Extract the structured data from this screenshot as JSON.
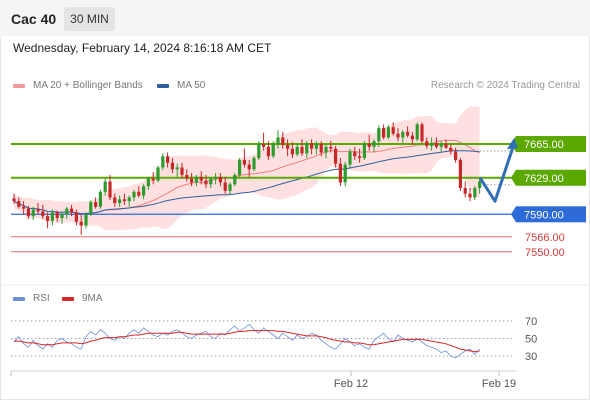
{
  "header": {
    "instrument": "Cac 40",
    "timeframe": "30 MIN",
    "datetime": "Wednesday, February 14, 2024 8:16:18 AM CET"
  },
  "legend": {
    "bollinger_label": "MA 20 + Bollinger Bands",
    "ma50_label": "MA 50",
    "credit": "Research © 2024 Trading Central",
    "rsi_label": "RSI",
    "rsi_ma_label": "9MA"
  },
  "colors": {
    "up_candle": "#2d9b2d",
    "down_candle": "#c62828",
    "bollinger_band": "#ffd6d6",
    "ma20": "#f08080",
    "ma50": "#2f5f9e",
    "support_resistance": "#5aa800",
    "pivot": "#2e6bd8",
    "target": "#e06a6a",
    "arrow": "#2f6db5",
    "rsi": "#6b8fd6",
    "rsi_ma": "#d62828"
  },
  "chart_data": [
    {
      "type": "candlestick",
      "title": "Cac 40",
      "price_ylim": [
        7538,
        7712
      ],
      "x_tick_labels": [
        "Feb 12",
        "Feb 19"
      ],
      "levels": [
        {
          "label": "7665.00",
          "value": 7665.0,
          "role": "resistance"
        },
        {
          "label": "7629.00",
          "value": 7629.0,
          "role": "support"
        },
        {
          "label": "7590.00",
          "value": 7590.0,
          "role": "pivot"
        },
        {
          "label": "7566.00",
          "value": 7566.0,
          "role": "target"
        },
        {
          "label": "7550.00",
          "value": 7550.0,
          "role": "target"
        }
      ],
      "scenario_arrow": [
        7629,
        7604,
        7665
      ],
      "candles": [
        [
          7607,
          7612,
          7601,
          7604
        ],
        [
          7604,
          7608,
          7596,
          7598
        ],
        [
          7598,
          7604,
          7590,
          7596
        ],
        [
          7596,
          7599,
          7585,
          7588
        ],
        [
          7588,
          7598,
          7584,
          7595
        ],
        [
          7595,
          7602,
          7590,
          7593
        ],
        [
          7593,
          7600,
          7585,
          7588
        ],
        [
          7588,
          7592,
          7575,
          7583
        ],
        [
          7583,
          7595,
          7578,
          7592
        ],
        [
          7592,
          7594,
          7582,
          7586
        ],
        [
          7586,
          7593,
          7580,
          7590
        ],
        [
          7590,
          7598,
          7585,
          7596
        ],
        [
          7596,
          7600,
          7588,
          7592
        ],
        [
          7592,
          7595,
          7578,
          7582
        ],
        [
          7582,
          7590,
          7568,
          7578
        ],
        [
          7578,
          7592,
          7575,
          7590
        ],
        [
          7590,
          7605,
          7588,
          7603
        ],
        [
          7603,
          7608,
          7596,
          7598
        ],
        [
          7598,
          7616,
          7596,
          7614
        ],
        [
          7614,
          7628,
          7610,
          7625
        ],
        [
          7625,
          7632,
          7605,
          7608
        ],
        [
          7608,
          7612,
          7598,
          7602
        ],
        [
          7602,
          7610,
          7598,
          7606
        ],
        [
          7606,
          7612,
          7600,
          7604
        ],
        [
          7604,
          7610,
          7598,
          7608
        ],
        [
          7608,
          7616,
          7604,
          7614
        ],
        [
          7614,
          7620,
          7608,
          7610
        ],
        [
          7610,
          7622,
          7606,
          7620
        ],
        [
          7620,
          7630,
          7616,
          7628
        ],
        [
          7628,
          7635,
          7622,
          7626
        ],
        [
          7626,
          7642,
          7624,
          7640
        ],
        [
          7640,
          7655,
          7637,
          7652
        ],
        [
          7652,
          7656,
          7640,
          7645
        ],
        [
          7645,
          7650,
          7634,
          7638
        ],
        [
          7638,
          7644,
          7630,
          7640
        ],
        [
          7640,
          7645,
          7628,
          7632
        ],
        [
          7632,
          7638,
          7625,
          7628
        ],
        [
          7628,
          7634,
          7620,
          7624
        ],
        [
          7624,
          7632,
          7620,
          7630
        ],
        [
          7630,
          7636,
          7622,
          7626
        ],
        [
          7626,
          7632,
          7618,
          7622
        ],
        [
          7622,
          7630,
          7618,
          7628
        ],
        [
          7628,
          7634,
          7622,
          7630
        ],
        [
          7630,
          7634,
          7620,
          7624
        ],
        [
          7624,
          7630,
          7612,
          7615
        ],
        [
          7615,
          7624,
          7611,
          7622
        ],
        [
          7622,
          7634,
          7620,
          7632
        ],
        [
          7632,
          7650,
          7630,
          7648
        ],
        [
          7648,
          7660,
          7640,
          7643
        ],
        [
          7643,
          7648,
          7630,
          7638
        ],
        [
          7638,
          7652,
          7636,
          7650
        ],
        [
          7650,
          7668,
          7648,
          7665
        ],
        [
          7665,
          7677,
          7658,
          7662
        ],
        [
          7662,
          7668,
          7648,
          7652
        ],
        [
          7652,
          7668,
          7650,
          7665
        ],
        [
          7665,
          7680,
          7660,
          7672
        ],
        [
          7672,
          7678,
          7660,
          7664
        ],
        [
          7664,
          7670,
          7652,
          7660
        ],
        [
          7660,
          7667,
          7650,
          7654
        ],
        [
          7654,
          7666,
          7652,
          7662
        ],
        [
          7662,
          7670,
          7652,
          7655
        ],
        [
          7655,
          7668,
          7650,
          7666
        ],
        [
          7666,
          7670,
          7654,
          7660
        ],
        [
          7660,
          7668,
          7654,
          7665
        ],
        [
          7665,
          7668,
          7652,
          7656
        ],
        [
          7656,
          7664,
          7650,
          7662
        ],
        [
          7662,
          7668,
          7656,
          7660
        ],
        [
          7660,
          7663,
          7640,
          7644
        ],
        [
          7644,
          7650,
          7620,
          7624
        ],
        [
          7624,
          7646,
          7620,
          7643
        ],
        [
          7643,
          7660,
          7640,
          7657
        ],
        [
          7657,
          7662,
          7648,
          7652
        ],
        [
          7652,
          7660,
          7645,
          7650
        ],
        [
          7650,
          7668,
          7648,
          7665
        ],
        [
          7665,
          7675,
          7658,
          7662
        ],
        [
          7662,
          7670,
          7656,
          7668
        ],
        [
          7668,
          7685,
          7662,
          7682
        ],
        [
          7682,
          7686,
          7670,
          7672
        ],
        [
          7672,
          7685,
          7670,
          7683
        ],
        [
          7683,
          7688,
          7674,
          7676
        ],
        [
          7676,
          7682,
          7668,
          7672
        ],
        [
          7672,
          7680,
          7666,
          7678
        ],
        [
          7678,
          7684,
          7672,
          7674
        ],
        [
          7674,
          7678,
          7664,
          7670
        ],
        [
          7670,
          7688,
          7668,
          7686
        ],
        [
          7686,
          7688,
          7666,
          7668
        ],
        [
          7668,
          7672,
          7660,
          7663
        ],
        [
          7663,
          7672,
          7658,
          7666
        ],
        [
          7666,
          7672,
          7660,
          7662
        ],
        [
          7662,
          7668,
          7656,
          7665
        ],
        [
          7665,
          7670,
          7660,
          7661
        ],
        [
          7661,
          7664,
          7654,
          7657
        ],
        [
          7657,
          7661,
          7645,
          7648
        ],
        [
          7648,
          7650,
          7615,
          7618
        ],
        [
          7618,
          7625,
          7608,
          7612
        ],
        [
          7612,
          7618,
          7604,
          7608
        ],
        [
          7608,
          7620,
          7605,
          7618
        ],
        [
          7618,
          7628,
          7612,
          7625
        ]
      ],
      "rsi": [
        46,
        52,
        44,
        40,
        48,
        42,
        38,
        44,
        40,
        48,
        50,
        46,
        44,
        40,
        38,
        52,
        58,
        54,
        60,
        56,
        50,
        48,
        52,
        50,
        56,
        60,
        56,
        62,
        58,
        54,
        52,
        56,
        54,
        58,
        60,
        56,
        52,
        50,
        54,
        56,
        58,
        52,
        50,
        56,
        54,
        60,
        64,
        58,
        62,
        66,
        60,
        56,
        62,
        58,
        54,
        50,
        56,
        52,
        48,
        54,
        50,
        52,
        56,
        54,
        48,
        44,
        40,
        38,
        44,
        50,
        46,
        42,
        44,
        40,
        38,
        48,
        52,
        56,
        50,
        46,
        54,
        50,
        48,
        46,
        50,
        46,
        42,
        40,
        38,
        34,
        36,
        30,
        28,
        32,
        36,
        38,
        32,
        38
      ],
      "rsi_ma": [
        47,
        47,
        46,
        45,
        45,
        44,
        43,
        43,
        43,
        44,
        45,
        45,
        45,
        45,
        44,
        45,
        47,
        48,
        50,
        51,
        51,
        51,
        52,
        52,
        53,
        54,
        54,
        55,
        56,
        56,
        56,
        56,
        56,
        56,
        57,
        57,
        56,
        55,
        55,
        55,
        55,
        55,
        55,
        55,
        55,
        56,
        57,
        58,
        58,
        59,
        59,
        59,
        59,
        59,
        59,
        58,
        58,
        57,
        56,
        55,
        54,
        53,
        53,
        53,
        52,
        51,
        49,
        48,
        47,
        46,
        46,
        45,
        45,
        44,
        43,
        43,
        44,
        45,
        46,
        47,
        48,
        49,
        49,
        49,
        49,
        49,
        48,
        47,
        46,
        45,
        44,
        42,
        40,
        38,
        37,
        36,
        35,
        36
      ],
      "rsi_ylim": [
        20,
        80
      ],
      "rsi_ticks": [
        70,
        50,
        30
      ],
      "rsi_guides": [
        70,
        50,
        30
      ]
    }
  ]
}
